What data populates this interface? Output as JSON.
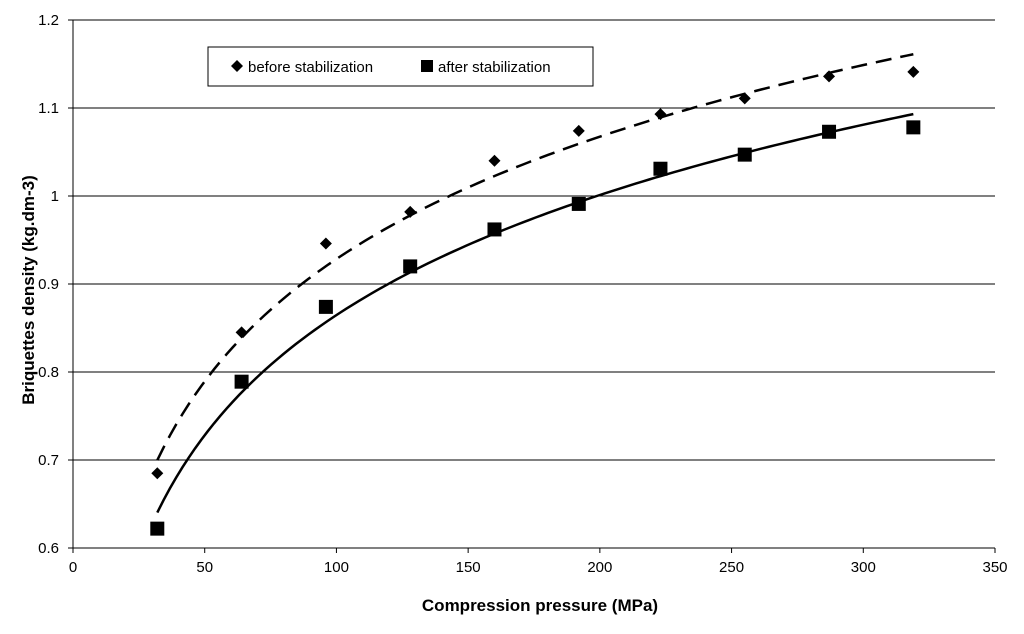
{
  "chart_data": {
    "type": "scatter",
    "title": "",
    "xlabel": "Compression pressure (MPa)",
    "ylabel": "Briquettes density (kg.dm-3)",
    "xlim": [
      0,
      350
    ],
    "ylim": [
      0.6,
      1.2
    ],
    "xticks": [
      0,
      50,
      100,
      150,
      200,
      250,
      300,
      350
    ],
    "yticks": [
      0.6,
      0.7,
      0.8,
      0.9,
      1.0,
      1.1,
      1.2
    ],
    "ytick_labels": [
      "0.6",
      "0.7",
      "0.8",
      "0.9",
      "1",
      "1.1",
      "1.2"
    ],
    "grid": "horizontal",
    "legend_position": "top-left",
    "series": [
      {
        "name": "before stabilization",
        "marker": "diamond",
        "x": [
          32,
          64,
          96,
          128,
          160,
          192,
          223,
          255,
          287,
          319
        ],
        "y": [
          0.685,
          0.845,
          0.946,
          0.982,
          1.04,
          1.074,
          1.093,
          1.111,
          1.136,
          1.141
        ],
        "trendline": {
          "kind": "logarithmic",
          "style": "dashed",
          "x_range": [
            32,
            319
          ],
          "a": 0.2006,
          "b": 0.0046
        }
      },
      {
        "name": "after stabilization",
        "marker": "square",
        "x": [
          32,
          64,
          96,
          128,
          160,
          192,
          223,
          255,
          287,
          319
        ],
        "y": [
          0.622,
          0.789,
          0.874,
          0.92,
          0.962,
          0.991,
          1.031,
          1.047,
          1.073,
          1.078
        ],
        "trendline": {
          "kind": "logarithmic",
          "style": "solid",
          "x_range": [
            32,
            319
          ],
          "a": 0.1969,
          "b": -0.0421
        }
      }
    ]
  }
}
